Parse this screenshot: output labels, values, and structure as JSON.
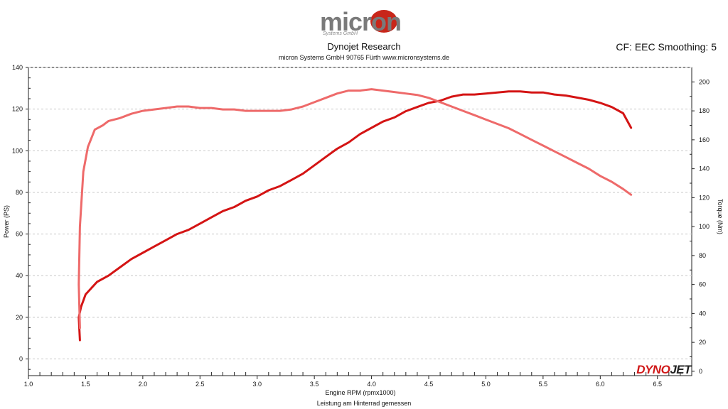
{
  "header": {
    "logo_text": "micron",
    "logo_sub": "Systems GmbH",
    "title": "Dynojet Research",
    "subtitle": "micron Systems GmbH  90765 Fürth www.micronsystems.de",
    "cf_text": "CF: EEC Smoothing: 5"
  },
  "footer": {
    "note": "Leistung am Hinterrad gemessen"
  },
  "brand": {
    "part1": "DYNO",
    "part2": "JET"
  },
  "colors": {
    "power": "#d41414",
    "torque": "#ee6a6a",
    "grid": "#c8c8c8",
    "axis": "#222222"
  },
  "chart_data": {
    "type": "line",
    "xlabel": "Engine RPM (rpmx1000)",
    "ylabel": "Power (PS)",
    "y2label": "Torque (Nm)",
    "xlim": [
      1.0,
      6.8
    ],
    "ylim": [
      -8,
      140
    ],
    "y2lim": [
      -3,
      210
    ],
    "xticks": [
      "1.0",
      "1.5",
      "2.0",
      "2.5",
      "3.0",
      "3.5",
      "4.0",
      "4.5",
      "5.0",
      "5.5",
      "6.0",
      "6.5"
    ],
    "yticks": [
      "0",
      "20",
      "40",
      "60",
      "80",
      "100",
      "120",
      "140"
    ],
    "y2ticks": [
      "0",
      "20",
      "40",
      "60",
      "80",
      "100",
      "120",
      "140",
      "160",
      "180",
      "200"
    ],
    "series": [
      {
        "axis": "left",
        "color_key": "power",
        "x": [
          1.45,
          1.44,
          1.46,
          1.5,
          1.6,
          1.7,
          1.8,
          1.9,
          2.0,
          2.1,
          2.2,
          2.3,
          2.4,
          2.5,
          2.6,
          2.7,
          2.8,
          2.9,
          3.0,
          3.1,
          3.2,
          3.3,
          3.4,
          3.5,
          3.6,
          3.7,
          3.8,
          3.9,
          4.0,
          4.1,
          4.2,
          4.3,
          4.4,
          4.5,
          4.6,
          4.7,
          4.8,
          4.9,
          5.0,
          5.1,
          5.2,
          5.3,
          5.4,
          5.5,
          5.6,
          5.7,
          5.8,
          5.9,
          6.0,
          6.1,
          6.2,
          6.27
        ],
        "values": [
          9,
          20,
          25,
          31,
          37,
          40,
          44,
          48,
          51,
          54,
          57,
          60,
          62,
          65,
          68,
          71,
          73,
          76,
          78,
          81,
          83,
          86,
          89,
          93,
          97,
          101,
          104,
          108,
          111,
          114,
          116,
          119,
          121,
          123,
          124,
          126,
          127,
          127,
          127.5,
          128,
          128.5,
          128.5,
          128,
          128,
          127,
          126.5,
          125.5,
          124.5,
          123,
          121,
          118,
          111
        ]
      },
      {
        "axis": "right",
        "color_key": "torque",
        "x": [
          1.45,
          1.44,
          1.45,
          1.48,
          1.52,
          1.58,
          1.65,
          1.7,
          1.8,
          1.9,
          2.0,
          2.1,
          2.2,
          2.3,
          2.4,
          2.5,
          2.6,
          2.7,
          2.8,
          2.9,
          3.0,
          3.1,
          3.2,
          3.3,
          3.4,
          3.5,
          3.6,
          3.7,
          3.8,
          3.9,
          4.0,
          4.1,
          4.2,
          4.3,
          4.4,
          4.5,
          4.6,
          4.7,
          4.8,
          4.9,
          5.0,
          5.1,
          5.2,
          5.3,
          5.4,
          5.5,
          5.6,
          5.7,
          5.8,
          5.9,
          6.0,
          6.1,
          6.2,
          6.27
        ],
        "values": [
          30,
          60,
          100,
          138,
          155,
          167,
          170,
          173,
          175,
          178,
          180,
          181,
          182,
          183,
          183,
          182,
          182,
          181,
          181,
          180,
          180,
          180,
          180,
          181,
          183,
          186,
          189,
          192,
          194,
          194,
          195,
          194,
          193,
          192,
          191,
          189,
          186,
          183,
          180,
          177,
          174,
          171,
          168,
          164,
          160,
          156,
          152,
          148,
          144,
          140,
          135,
          131,
          126,
          122
        ]
      }
    ]
  }
}
